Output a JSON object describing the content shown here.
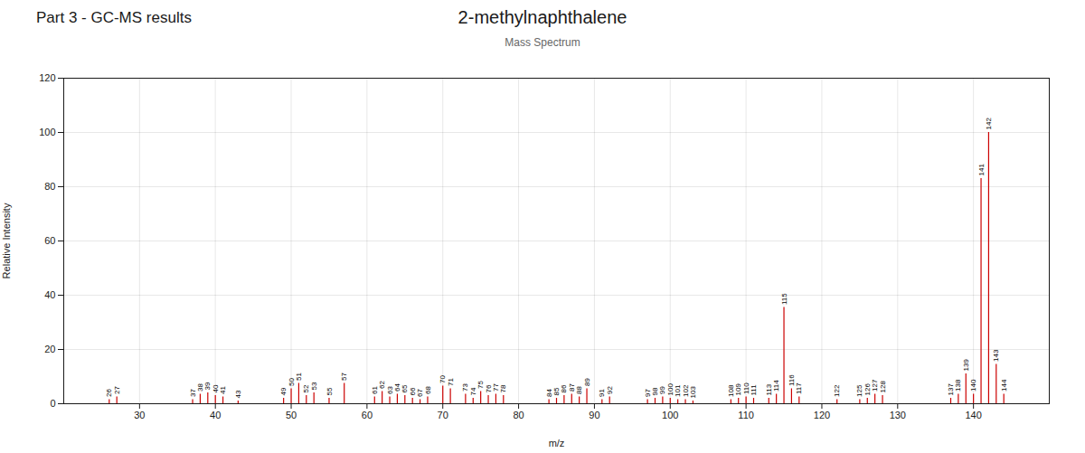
{
  "chart_data": {
    "type": "stem",
    "title": "2-methylnaphthalene",
    "subtitle": "Mass Spectrum",
    "suptitle": "Part 3 - GC-MS results",
    "xlabel": "m/z",
    "ylabel": "Relative Intensity",
    "x": [
      26,
      27,
      37,
      38,
      39,
      40,
      41,
      43,
      49,
      50,
      51,
      52,
      53,
      55,
      57,
      61,
      62,
      63,
      64,
      65,
      66,
      67,
      68,
      70,
      71,
      73,
      74,
      75,
      76,
      77,
      78,
      84,
      85,
      86,
      87,
      88,
      89,
      91,
      92,
      97,
      98,
      99,
      100,
      101,
      102,
      103,
      108,
      109,
      110,
      111,
      113,
      114,
      115,
      116,
      117,
      122,
      125,
      126,
      127,
      128,
      137,
      138,
      139,
      140,
      141,
      142,
      143,
      144
    ],
    "values": [
      1.5,
      2.5,
      1.5,
      3.5,
      4.0,
      3.0,
      2.5,
      1.0,
      2.0,
      5.5,
      7.5,
      3.0,
      4.0,
      2.0,
      7.5,
      2.5,
      4.5,
      2.5,
      3.5,
      3.0,
      2.0,
      1.5,
      2.5,
      6.5,
      5.5,
      3.5,
      2.0,
      4.5,
      3.0,
      3.5,
      3.0,
      1.5,
      2.0,
      3.0,
      3.5,
      2.5,
      5.5,
      1.5,
      2.5,
      1.5,
      2.0,
      2.5,
      2.0,
      1.5,
      1.5,
      1.0,
      1.5,
      2.0,
      2.5,
      2.0,
      2.0,
      3.5,
      35.5,
      5.5,
      2.5,
      1.5,
      1.5,
      2.0,
      3.5,
      3.0,
      2.0,
      3.5,
      11.0,
      3.5,
      83.0,
      100.0,
      14.5,
      3.5
    ],
    "annotations": [
      {
        "x": 26,
        "y": 1.5,
        "text": "26"
      },
      {
        "x": 27,
        "y": 2.5,
        "text": "27"
      },
      {
        "x": 37,
        "y": 1.5,
        "text": "37"
      },
      {
        "x": 38,
        "y": 3.5,
        "text": "38"
      },
      {
        "x": 39,
        "y": 4.0,
        "text": "39"
      },
      {
        "x": 40,
        "y": 3.0,
        "text": "40"
      },
      {
        "x": 41,
        "y": 2.5,
        "text": "41"
      },
      {
        "x": 43,
        "y": 1.0,
        "text": "43"
      },
      {
        "x": 49,
        "y": 2.0,
        "text": "49"
      },
      {
        "x": 50,
        "y": 5.5,
        "text": "50"
      },
      {
        "x": 51,
        "y": 7.5,
        "text": "51"
      },
      {
        "x": 52,
        "y": 3.0,
        "text": "52"
      },
      {
        "x": 53,
        "y": 4.0,
        "text": "53"
      },
      {
        "x": 55,
        "y": 2.0,
        "text": "55"
      },
      {
        "x": 57,
        "y": 7.5,
        "text": "57"
      },
      {
        "x": 61,
        "y": 2.5,
        "text": "61"
      },
      {
        "x": 62,
        "y": 4.5,
        "text": "62"
      },
      {
        "x": 63,
        "y": 2.5,
        "text": "63"
      },
      {
        "x": 64,
        "y": 3.5,
        "text": "64"
      },
      {
        "x": 65,
        "y": 3.0,
        "text": "65"
      },
      {
        "x": 66,
        "y": 2.0,
        "text": "66"
      },
      {
        "x": 67,
        "y": 1.5,
        "text": "67"
      },
      {
        "x": 68,
        "y": 2.5,
        "text": "68"
      },
      {
        "x": 70,
        "y": 6.5,
        "text": "70"
      },
      {
        "x": 71,
        "y": 5.5,
        "text": "71"
      },
      {
        "x": 73,
        "y": 3.5,
        "text": "73"
      },
      {
        "x": 74,
        "y": 2.0,
        "text": "74"
      },
      {
        "x": 75,
        "y": 4.5,
        "text": "75"
      },
      {
        "x": 76,
        "y": 3.0,
        "text": "76"
      },
      {
        "x": 77,
        "y": 3.5,
        "text": "77"
      },
      {
        "x": 78,
        "y": 3.0,
        "text": "78"
      },
      {
        "x": 84,
        "y": 1.5,
        "text": "84"
      },
      {
        "x": 85,
        "y": 2.0,
        "text": "85"
      },
      {
        "x": 86,
        "y": 3.0,
        "text": "86"
      },
      {
        "x": 87,
        "y": 3.5,
        "text": "87"
      },
      {
        "x": 88,
        "y": 2.5,
        "text": "88"
      },
      {
        "x": 89,
        "y": 5.5,
        "text": "89"
      },
      {
        "x": 91,
        "y": 1.5,
        "text": "91"
      },
      {
        "x": 92,
        "y": 2.5,
        "text": "92"
      },
      {
        "x": 97,
        "y": 1.5,
        "text": "97"
      },
      {
        "x": 98,
        "y": 2.0,
        "text": "98"
      },
      {
        "x": 99,
        "y": 2.5,
        "text": "99"
      },
      {
        "x": 100,
        "y": 2.0,
        "text": "100"
      },
      {
        "x": 101,
        "y": 1.5,
        "text": "101"
      },
      {
        "x": 102,
        "y": 1.5,
        "text": "102"
      },
      {
        "x": 103,
        "y": 1.0,
        "text": "103"
      },
      {
        "x": 108,
        "y": 1.5,
        "text": "108"
      },
      {
        "x": 109,
        "y": 2.0,
        "text": "109"
      },
      {
        "x": 110,
        "y": 2.5,
        "text": "110"
      },
      {
        "x": 111,
        "y": 2.0,
        "text": "111"
      },
      {
        "x": 113,
        "y": 2.0,
        "text": "113"
      },
      {
        "x": 114,
        "y": 3.5,
        "text": "114"
      },
      {
        "x": 115,
        "y": 35.5,
        "text": "115"
      },
      {
        "x": 116,
        "y": 5.5,
        "text": "116"
      },
      {
        "x": 117,
        "y": 2.5,
        "text": "117"
      },
      {
        "x": 122,
        "y": 1.5,
        "text": "122"
      },
      {
        "x": 125,
        "y": 1.5,
        "text": "125"
      },
      {
        "x": 126,
        "y": 2.0,
        "text": "126"
      },
      {
        "x": 127,
        "y": 3.5,
        "text": "127"
      },
      {
        "x": 128,
        "y": 3.0,
        "text": "128"
      },
      {
        "x": 137,
        "y": 2.0,
        "text": "137"
      },
      {
        "x": 138,
        "y": 3.5,
        "text": "138"
      },
      {
        "x": 139,
        "y": 11.0,
        "text": "139"
      },
      {
        "x": 140,
        "y": 3.5,
        "text": "140"
      },
      {
        "x": 141,
        "y": 83.0,
        "text": "141"
      },
      {
        "x": 142,
        "y": 100.0,
        "text": "142"
      },
      {
        "x": 143,
        "y": 14.5,
        "text": "143"
      },
      {
        "x": 144,
        "y": 3.5,
        "text": "144"
      }
    ],
    "color": "#cc0000",
    "xlim": [
      20,
      150
    ],
    "ylim": [
      0,
      120
    ],
    "xticks": [
      30,
      40,
      50,
      60,
      70,
      80,
      90,
      100,
      110,
      120,
      130,
      140
    ],
    "yticks": [
      0,
      20,
      40,
      60,
      80,
      100,
      120
    ],
    "grid": true
  }
}
